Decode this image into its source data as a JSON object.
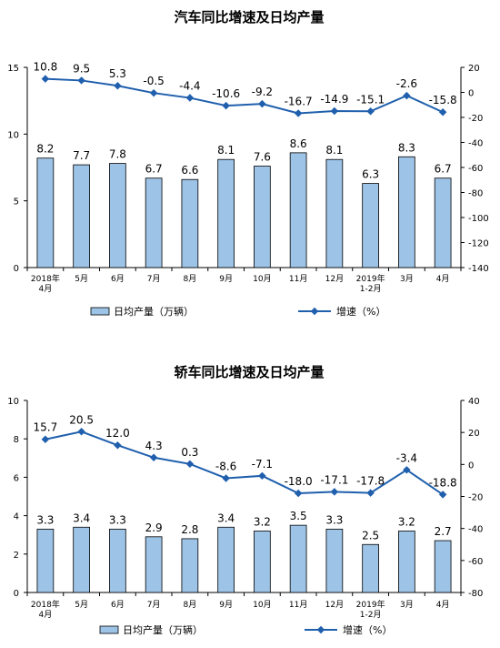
{
  "chart_data": [
    {
      "type": "bar",
      "title": "汽车同比增速及日均产量",
      "categories": [
        "2018年\n4月",
        "5月",
        "6月",
        "7月",
        "8月",
        "9月",
        "10月",
        "11月",
        "12月",
        "2019年\n1-2月",
        "3月",
        "4月"
      ],
      "series": [
        {
          "name": "日均产量（万辆）",
          "axis": "left",
          "type": "bar",
          "values": [
            8.2,
            7.7,
            7.8,
            6.7,
            6.6,
            8.1,
            7.6,
            8.6,
            8.1,
            6.3,
            8.3,
            6.7
          ]
        },
        {
          "name": "增速（%）",
          "axis": "right",
          "type": "line",
          "values": [
            10.8,
            9.5,
            5.3,
            -0.5,
            -4.4,
            -10.6,
            -9.2,
            -16.7,
            -14.9,
            -15.1,
            -2.6,
            -15.8
          ]
        }
      ],
      "ylim_left": [
        0,
        15
      ],
      "yticks_left": [
        0,
        5,
        10,
        15
      ],
      "ylim_right": [
        -140,
        20
      ],
      "yticks_right": [
        20,
        0,
        -20,
        -40,
        -60,
        -80,
        -100,
        -120,
        -140
      ],
      "bar_color": "#9DC3E6",
      "line_color": "#1F5FAD",
      "grid": false,
      "legend_position": "bottom"
    },
    {
      "type": "bar",
      "title": "轿车同比增速及日均产量",
      "categories": [
        "2018年\n4月",
        "5月",
        "6月",
        "7月",
        "8月",
        "9月",
        "10月",
        "11月",
        "12月",
        "2019年\n1-2月",
        "3月",
        "4月"
      ],
      "series": [
        {
          "name": "日均产量（万辆）",
          "axis": "left",
          "type": "bar",
          "values": [
            3.3,
            3.4,
            3.3,
            2.9,
            2.8,
            3.4,
            3.2,
            3.5,
            3.3,
            2.5,
            3.2,
            2.7
          ]
        },
        {
          "name": "增速（%）",
          "axis": "right",
          "type": "line",
          "values": [
            15.7,
            20.5,
            12.0,
            4.3,
            0.3,
            -8.6,
            -7.1,
            -18.0,
            -17.1,
            -17.8,
            -3.4,
            -18.8
          ]
        }
      ],
      "ylim_left": [
        0,
        10
      ],
      "yticks_left": [
        0,
        2,
        4,
        6,
        8,
        10
      ],
      "ylim_right": [
        -80,
        40
      ],
      "yticks_right": [
        40,
        20,
        0,
        -20,
        -40,
        -60,
        -80
      ],
      "bar_color": "#9DC3E6",
      "line_color": "#1F5FAD",
      "grid": false,
      "legend_position": "bottom"
    }
  ]
}
